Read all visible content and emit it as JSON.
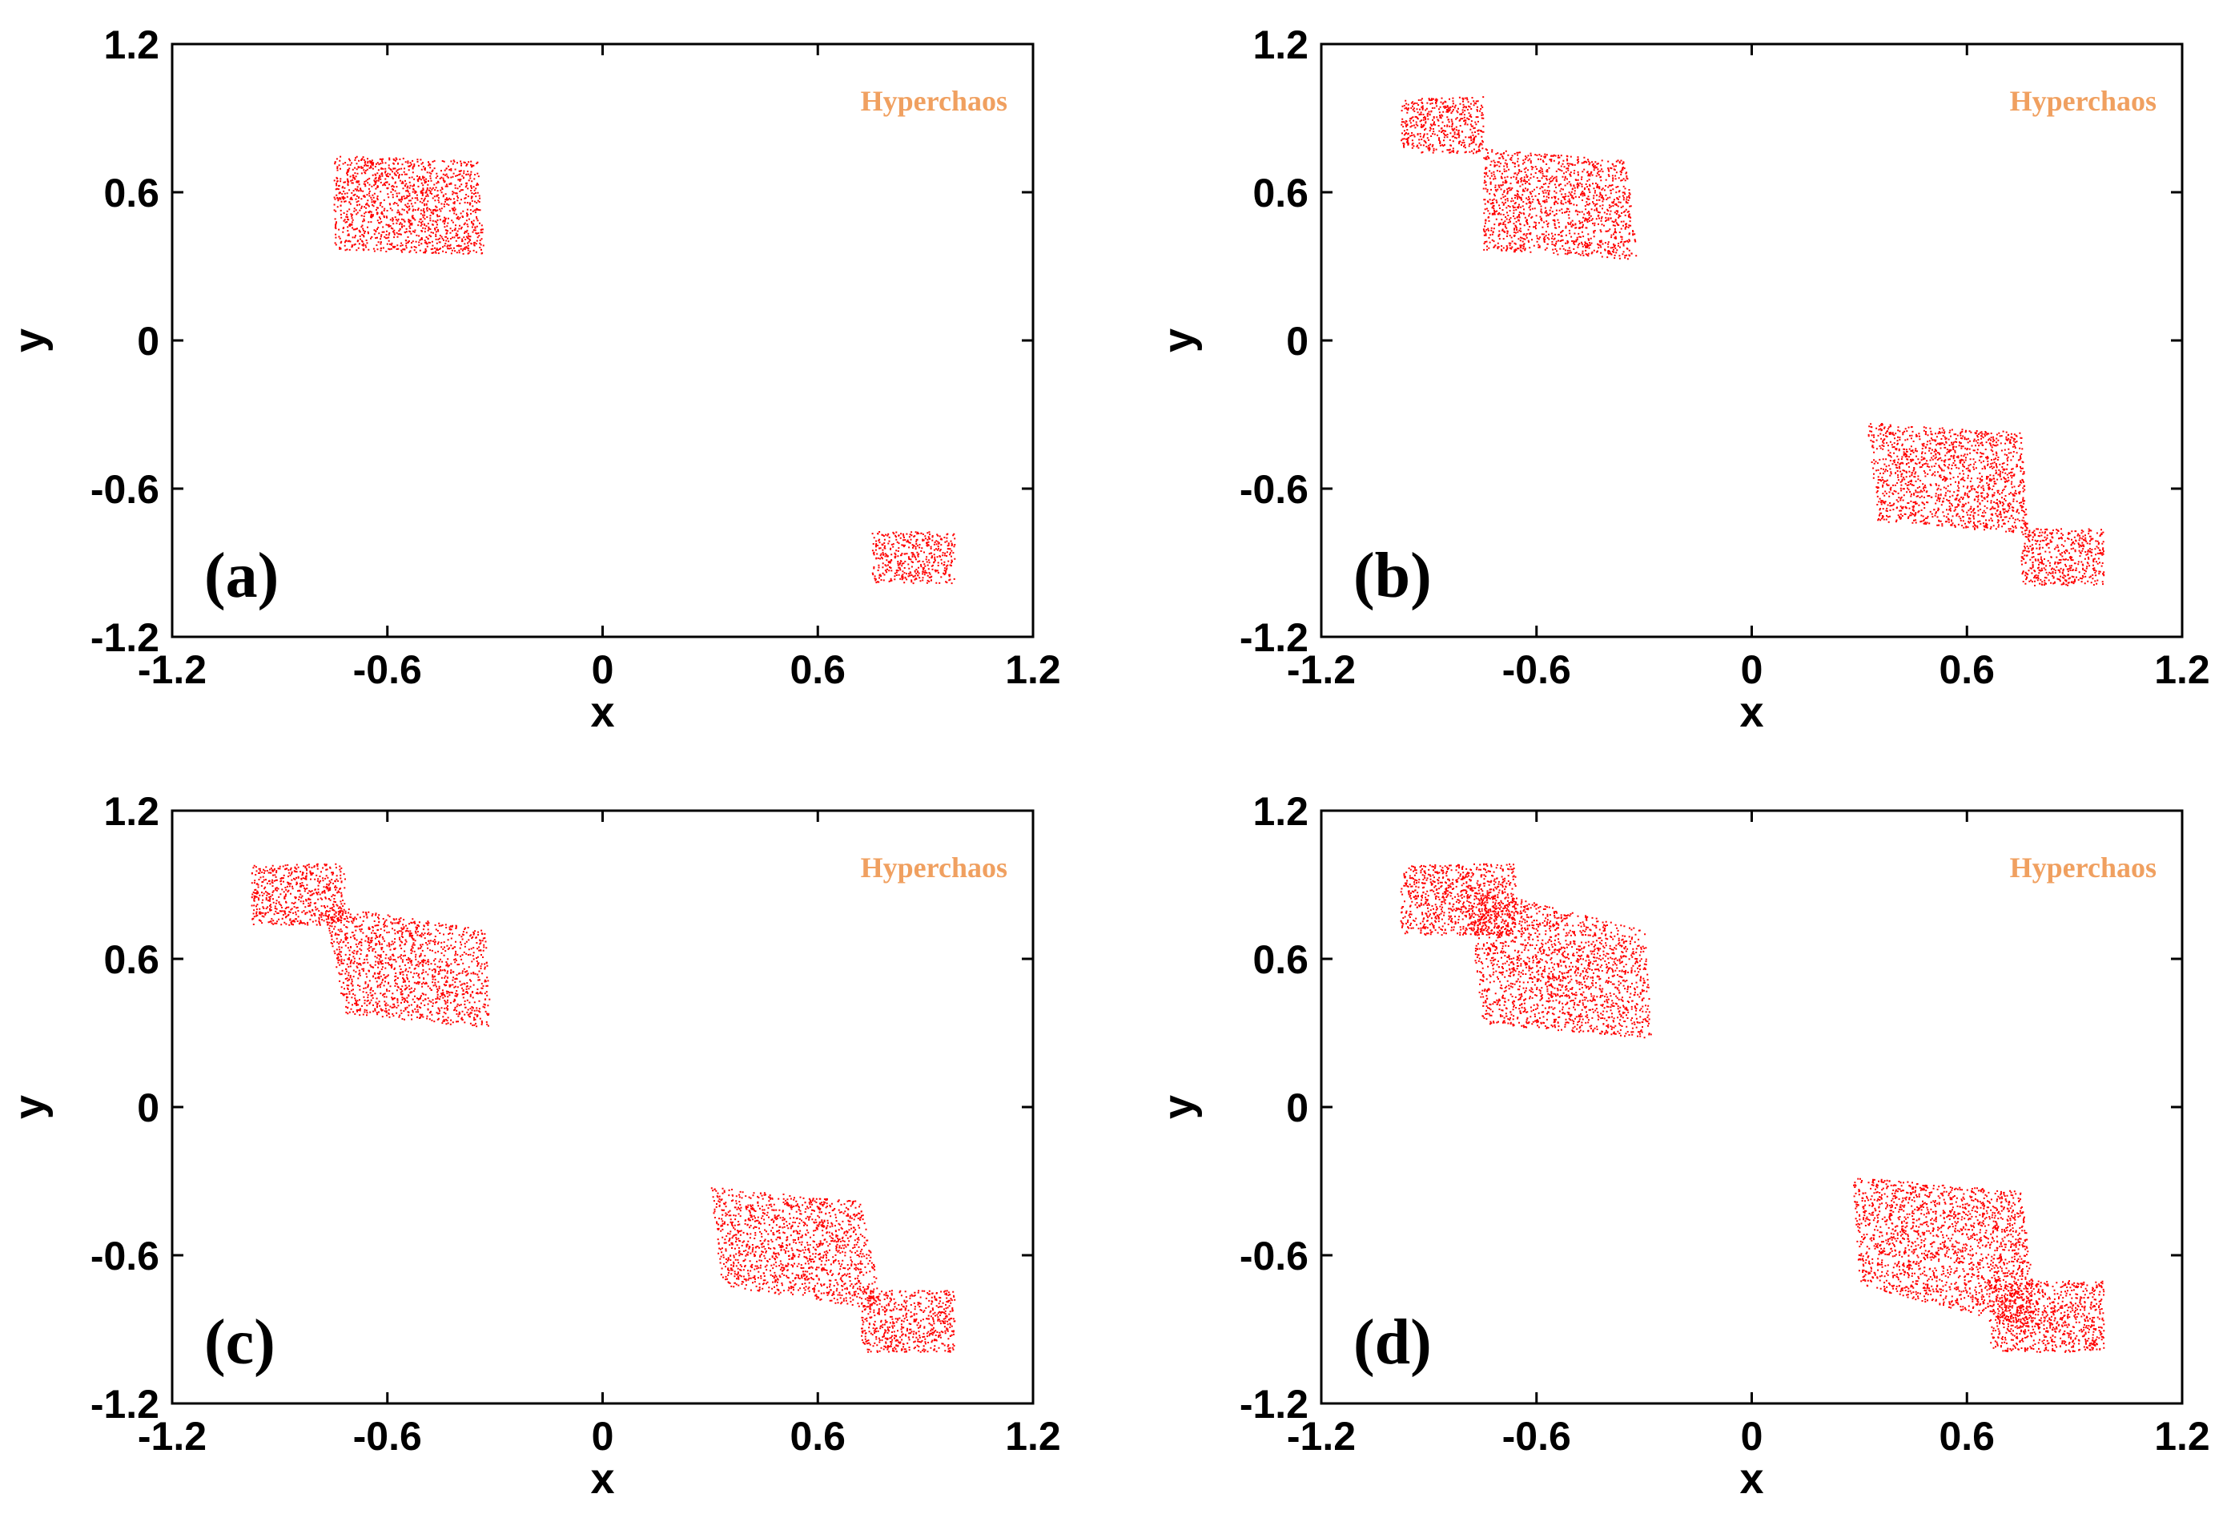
{
  "figure": {
    "panel_count": 4
  },
  "chart_data": [
    {
      "type": "scatter",
      "panel_label": "(a)",
      "annotation": "Hyperchaos",
      "xlabel": "x",
      "ylabel": "y",
      "xlim": [
        -1.2,
        1.2
      ],
      "ylim": [
        -1.2,
        1.2
      ],
      "xticks": [
        "-1.2",
        "-0.6",
        "0",
        "0.6",
        "1.2"
      ],
      "yticks": [
        "1.2",
        "0.6",
        "0",
        "-0.6",
        "-1.2"
      ],
      "marker_color": "#ff0000",
      "annotation_color": "#f0a060",
      "regions": [
        {
          "name": "upper-left lobe",
          "polygon": [
            [
              -0.75,
              0.75
            ],
            [
              -0.35,
              0.73
            ],
            [
              -0.33,
              0.35
            ],
            [
              -0.75,
              0.37
            ]
          ],
          "density": 0.9
        },
        {
          "name": "lower-right lobe",
          "polygon": [
            [
              0.75,
              -0.77
            ],
            [
              0.98,
              -0.77
            ],
            [
              0.98,
              -0.98
            ],
            [
              0.75,
              -0.98
            ]
          ],
          "density": 0.95
        }
      ]
    },
    {
      "type": "scatter",
      "panel_label": "(b)",
      "annotation": "Hyperchaos",
      "xlabel": "x",
      "ylabel": "y",
      "xlim": [
        -1.2,
        1.2
      ],
      "ylim": [
        -1.2,
        1.2
      ],
      "xticks": [
        "-1.2",
        "-0.6",
        "0",
        "0.6",
        "1.2"
      ],
      "yticks": [
        "1.2",
        "0.6",
        "0",
        "-0.6",
        "-1.2"
      ],
      "marker_color": "#ff0000",
      "annotation_color": "#f0a060",
      "regions": [
        {
          "name": "upper-left square",
          "polygon": [
            [
              -0.98,
              0.98
            ],
            [
              -0.75,
              0.99
            ],
            [
              -0.75,
              0.76
            ],
            [
              -0.98,
              0.76
            ]
          ],
          "density": 0.95
        },
        {
          "name": "upper-left lobe",
          "polygon": [
            [
              -0.75,
              0.78
            ],
            [
              -0.35,
              0.73
            ],
            [
              -0.32,
              0.33
            ],
            [
              -0.75,
              0.37
            ]
          ],
          "density": 0.85
        },
        {
          "name": "lower-right lobe",
          "polygon": [
            [
              0.32,
              -0.33
            ],
            [
              0.75,
              -0.37
            ],
            [
              0.77,
              -0.78
            ],
            [
              0.35,
              -0.73
            ]
          ],
          "density": 0.85
        },
        {
          "name": "lower-right square",
          "polygon": [
            [
              0.75,
              -0.76
            ],
            [
              0.98,
              -0.76
            ],
            [
              0.98,
              -0.99
            ],
            [
              0.75,
              -0.99
            ]
          ],
          "density": 0.95
        }
      ]
    },
    {
      "type": "scatter",
      "panel_label": "(c)",
      "annotation": "Hyperchaos",
      "xlabel": "x",
      "ylabel": "y",
      "xlim": [
        -1.2,
        1.2
      ],
      "ylim": [
        -1.2,
        1.2
      ],
      "xticks": [
        "-1.2",
        "-0.6",
        "0",
        "0.6",
        "1.2"
      ],
      "yticks": [
        "1.2",
        "0.6",
        "0",
        "-0.6",
        "-1.2"
      ],
      "marker_color": "#ff0000",
      "annotation_color": "#f0a060",
      "regions": [
        {
          "name": "upper-left square",
          "polygon": [
            [
              -0.98,
              0.98
            ],
            [
              -0.72,
              0.99
            ],
            [
              -0.72,
              0.74
            ],
            [
              -0.98,
              0.74
            ]
          ],
          "density": 0.95
        },
        {
          "name": "upper-left lobe",
          "polygon": [
            [
              -0.78,
              0.82
            ],
            [
              -0.33,
              0.72
            ],
            [
              -0.31,
              0.32
            ],
            [
              -0.72,
              0.38
            ]
          ],
          "density": 0.8
        },
        {
          "name": "lower-right lobe",
          "polygon": [
            [
              0.3,
              -0.32
            ],
            [
              0.72,
              -0.38
            ],
            [
              0.78,
              -0.82
            ],
            [
              0.33,
              -0.72
            ]
          ],
          "density": 0.8
        },
        {
          "name": "lower-right square",
          "polygon": [
            [
              0.72,
              -0.74
            ],
            [
              0.98,
              -0.74
            ],
            [
              0.98,
              -0.99
            ],
            [
              0.72,
              -0.99
            ]
          ],
          "density": 0.95
        }
      ]
    },
    {
      "type": "scatter",
      "panel_label": "(d)",
      "annotation": "Hyperchaos",
      "xlabel": "x",
      "ylabel": "y",
      "xlim": [
        -1.2,
        1.2
      ],
      "ylim": [
        -1.2,
        1.2
      ],
      "xticks": [
        "-1.2",
        "-0.6",
        "0",
        "0.6",
        "1.2"
      ],
      "yticks": [
        "1.2",
        "0.6",
        "0",
        "-0.6",
        "-1.2"
      ],
      "marker_color": "#ff0000",
      "annotation_color": "#f0a060",
      "regions": [
        {
          "name": "upper-left square",
          "polygon": [
            [
              -0.98,
              0.98
            ],
            [
              -0.66,
              0.99
            ],
            [
              -0.66,
              0.7
            ],
            [
              -0.98,
              0.7
            ]
          ],
          "density": 0.95
        },
        {
          "name": "upper-left lobe",
          "polygon": [
            [
              -0.8,
              0.9
            ],
            [
              -0.3,
              0.72
            ],
            [
              -0.28,
              0.28
            ],
            [
              -0.75,
              0.34
            ]
          ],
          "density": 0.8
        },
        {
          "name": "lower-right lobe",
          "polygon": [
            [
              0.28,
              -0.28
            ],
            [
              0.75,
              -0.34
            ],
            [
              0.8,
              -0.9
            ],
            [
              0.3,
              -0.72
            ]
          ],
          "density": 0.8
        },
        {
          "name": "lower-right square",
          "polygon": [
            [
              0.66,
              -0.7
            ],
            [
              0.98,
              -0.7
            ],
            [
              0.98,
              -0.99
            ],
            [
              0.66,
              -0.99
            ]
          ],
          "density": 0.95
        }
      ]
    }
  ]
}
